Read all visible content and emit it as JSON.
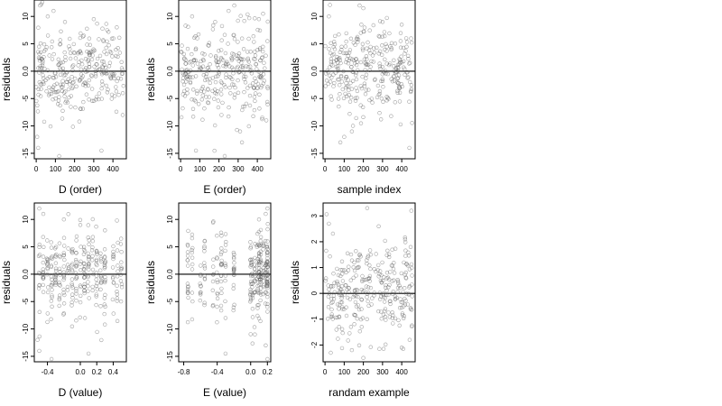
{
  "chart_data": [
    {
      "type": "scatter",
      "xlabel": "D (order)",
      "ylabel": "residuals",
      "xlim": [
        -10,
        470
      ],
      "ylim": [
        -16,
        13
      ],
      "xticks": [
        0,
        100,
        200,
        300,
        400
      ],
      "xticklabels": [
        "0",
        "100",
        "200",
        "300",
        "400"
      ],
      "yticks": [
        10,
        5,
        0,
        -5,
        -10,
        -15
      ],
      "yticklabels": [
        "10",
        "5",
        "0.0",
        "-5",
        "-10",
        "-15"
      ],
      "x_kind": "index",
      "spread": 4,
      "seed": 11,
      "points": [
        [
          5,
          -12
        ],
        [
          10,
          -14
        ],
        [
          120,
          -15.5
        ],
        [
          340,
          -14.5
        ],
        [
          60,
          10
        ],
        [
          90,
          11
        ],
        [
          20,
          12
        ],
        [
          150,
          9
        ],
        [
          300,
          9.5
        ],
        [
          420,
          8
        ]
      ]
    },
    {
      "type": "scatter",
      "xlabel": "E (order)",
      "ylabel": "residuals",
      "xlim": [
        -10,
        470
      ],
      "ylim": [
        -16,
        13
      ],
      "xticks": [
        0,
        100,
        200,
        300,
        400
      ],
      "xticklabels": [
        "0",
        "100",
        "200",
        "300",
        "400"
      ],
      "yticks": [
        10,
        5,
        0,
        -5,
        -10,
        -15
      ],
      "yticklabels": [
        "10",
        "5",
        "0.0",
        "-5",
        "-10",
        "-15"
      ],
      "x_kind": "index",
      "spread": 4,
      "seed": 23,
      "points": [
        [
          80,
          -14.5
        ],
        [
          230,
          -15.5
        ],
        [
          320,
          -13
        ],
        [
          310,
          -11
        ],
        [
          250,
          11
        ],
        [
          280,
          12
        ],
        [
          60,
          10
        ],
        [
          180,
          9
        ],
        [
          430,
          10.5
        ]
      ]
    },
    {
      "type": "scatter",
      "xlabel": "sample index",
      "ylabel": "residuals",
      "xlim": [
        -10,
        470
      ],
      "ylim": [
        -16,
        13
      ],
      "xticks": [
        0,
        100,
        200,
        300,
        400
      ],
      "xticklabels": [
        "0",
        "100",
        "200",
        "300",
        "400"
      ],
      "yticks": [
        10,
        5,
        0,
        -5,
        -10,
        -15
      ],
      "yticklabels": [
        "10",
        "5",
        "0.0",
        "-5",
        "-10",
        "-15"
      ],
      "x_kind": "index",
      "spread": 4,
      "seed": 37,
      "points": [
        [
          80,
          -13
        ],
        [
          100,
          -12
        ],
        [
          140,
          -11
        ],
        [
          440,
          -14
        ],
        [
          180,
          12
        ],
        [
          200,
          11.5
        ],
        [
          20,
          10
        ],
        [
          300,
          9
        ],
        [
          400,
          8.5
        ]
      ]
    },
    {
      "type": "scatter",
      "xlabel": "D (value)",
      "ylabel": "residuals",
      "xlim": [
        -0.56,
        0.56
      ],
      "ylim": [
        -16,
        13
      ],
      "xticks": [
        -0.4,
        0,
        0.2,
        0.4
      ],
      "xticklabels": [
        "-0.4",
        "0.0",
        "0.2",
        "0.4"
      ],
      "yticks": [
        10,
        5,
        0,
        -5,
        -10,
        -15
      ],
      "yticklabels": [
        "10",
        "5",
        "0.0",
        "-5",
        "-10",
        "-15"
      ],
      "x_kind": "dvalue",
      "spread": 4,
      "seed": 53,
      "points": [
        [
          -0.52,
          -12
        ],
        [
          -0.5,
          -14
        ],
        [
          -0.35,
          -15.5
        ],
        [
          0.1,
          -14.5
        ],
        [
          -0.5,
          12
        ],
        [
          -0.45,
          11
        ],
        [
          -0.2,
          10
        ],
        [
          0.0,
          9
        ],
        [
          0.3,
          8
        ]
      ]
    },
    {
      "type": "scatter",
      "xlabel": "E (value)",
      "ylabel": "residuals",
      "xlim": [
        -0.86,
        0.24
      ],
      "ylim": [
        -16,
        13
      ],
      "xticks": [
        -0.8,
        -0.4,
        0,
        0.2
      ],
      "xticklabels": [
        "-0.8",
        "-0.4",
        "0.0",
        "0.2"
      ],
      "yticks": [
        10,
        5,
        0,
        -5,
        -10,
        -15
      ],
      "yticklabels": [
        "10",
        "5",
        "0.0",
        "-5",
        "-10",
        "-15"
      ],
      "x_kind": "evalue",
      "spread": 4,
      "seed": 71,
      "points": [
        [
          -0.3,
          -14.5
        ],
        [
          0.2,
          -15.5
        ],
        [
          0.18,
          -13
        ],
        [
          0.05,
          -11
        ],
        [
          0.2,
          12
        ],
        [
          0.18,
          11
        ],
        [
          0.1,
          10
        ],
        [
          -0.55,
          6
        ],
        [
          -0.3,
          -8
        ]
      ]
    },
    {
      "type": "scatter",
      "xlabel": "randam example",
      "ylabel": "residuals",
      "xlim": [
        -10,
        470
      ],
      "ylim": [
        -2.65,
        3.5
      ],
      "xticks": [
        0,
        100,
        200,
        300,
        400
      ],
      "xticklabels": [
        "0",
        "100",
        "200",
        "300",
        "400"
      ],
      "yticks": [
        3,
        2,
        1,
        0,
        -1,
        -2
      ],
      "yticklabels": [
        "3",
        "2",
        "1",
        "0",
        "-1",
        "-2"
      ],
      "x_kind": "index",
      "spread": 1,
      "seed": 97,
      "points": [
        [
          20,
          2.7
        ],
        [
          220,
          3.3
        ],
        [
          450,
          3.2
        ],
        [
          280,
          2.6
        ],
        [
          30,
          -2.3
        ],
        [
          200,
          -2.5
        ],
        [
          140,
          -2.2
        ],
        [
          400,
          -2.1
        ]
      ]
    }
  ]
}
